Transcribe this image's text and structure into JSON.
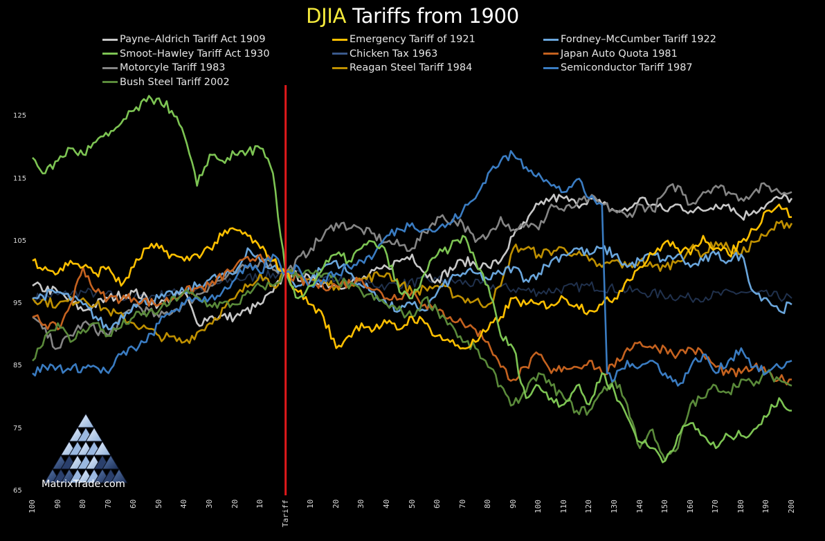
{
  "title": {
    "highlight": "DJIA",
    "rest": " Tariffs from 1900"
  },
  "logo": {
    "text": "MatrixTrade.com"
  },
  "chart_data": {
    "type": "line",
    "title": "DJIA Tariffs from 1900",
    "xlabel": "",
    "ylabel": "",
    "xlim": [
      -100,
      200
    ],
    "ylim": [
      65,
      130
    ],
    "yticks": [
      65,
      75,
      85,
      95,
      105,
      115,
      125
    ],
    "xticks": [
      {
        "x": -100,
        "label": "100"
      },
      {
        "x": -90,
        "label": "90"
      },
      {
        "x": -80,
        "label": "80"
      },
      {
        "x": -70,
        "label": "70"
      },
      {
        "x": -60,
        "label": "60"
      },
      {
        "x": -50,
        "label": "50"
      },
      {
        "x": -40,
        "label": "40"
      },
      {
        "x": -30,
        "label": "30"
      },
      {
        "x": -20,
        "label": "20"
      },
      {
        "x": -10,
        "label": "10"
      },
      {
        "x": 0,
        "label": "Tariff"
      },
      {
        "x": 10,
        "label": "10"
      },
      {
        "x": 20,
        "label": "20"
      },
      {
        "x": 30,
        "label": "30"
      },
      {
        "x": 40,
        "label": "40"
      },
      {
        "x": 50,
        "label": "50"
      },
      {
        "x": 60,
        "label": "60"
      },
      {
        "x": 70,
        "label": "70"
      },
      {
        "x": 80,
        "label": "80"
      },
      {
        "x": 90,
        "label": "90"
      },
      {
        "x": 100,
        "label": "100"
      },
      {
        "x": 110,
        "label": "110"
      },
      {
        "x": 120,
        "label": "120"
      },
      {
        "x": 130,
        "label": "130"
      },
      {
        "x": 140,
        "label": "140"
      },
      {
        "x": 150,
        "label": "150"
      },
      {
        "x": 160,
        "label": "160"
      },
      {
        "x": 170,
        "label": "170"
      },
      {
        "x": 180,
        "label": "180"
      },
      {
        "x": 190,
        "label": "190"
      },
      {
        "x": 200,
        "label": "200"
      }
    ],
    "grid": false,
    "legend_position": "top",
    "annotations": [
      {
        "type": "vertical-line",
        "x": 0,
        "color": "#e0191b",
        "label": "Tariff"
      }
    ],
    "series": [
      {
        "name": "Payne–Aldrich Tariff Act 1909",
        "color": "#c8c8c8",
        "x": [
          -100,
          -90,
          -80,
          -70,
          -60,
          -50,
          -40,
          -35,
          -30,
          -20,
          -10,
          -5,
          0,
          10,
          20,
          30,
          40,
          50,
          55,
          60,
          70,
          80,
          85,
          90,
          95,
          100,
          105,
          110,
          115,
          120,
          125,
          130,
          135,
          140,
          145,
          150,
          155,
          160,
          165,
          170,
          175,
          180,
          185,
          190,
          195,
          200
        ],
        "y": [
          98,
          97,
          94,
          96,
          97,
          95,
          97,
          92,
          93,
          93,
          95,
          97,
          100,
          99,
          98,
          99,
          101,
          103,
          100,
          99,
          102,
          101,
          102,
          106,
          108,
          111,
          112,
          112,
          111,
          112,
          111,
          110,
          110,
          112,
          111,
          110,
          111,
          110,
          110,
          111,
          111,
          109,
          110,
          111,
          112,
          112
        ]
      },
      {
        "name": "Emergency Tariff of 1921",
        "color": "#ffc000",
        "x": [
          -100,
          -95,
          -90,
          -85,
          -80,
          -75,
          -70,
          -65,
          -60,
          -55,
          -50,
          -45,
          -40,
          -35,
          -30,
          -25,
          -20,
          -15,
          -10,
          -5,
          0,
          5,
          10,
          15,
          20,
          25,
          30,
          35,
          40,
          45,
          50,
          55,
          60,
          65,
          70,
          75,
          80,
          85,
          90,
          95,
          100,
          105,
          110,
          115,
          120,
          125,
          130,
          135,
          140,
          145,
          150,
          155,
          160,
          165,
          170,
          175,
          180,
          185,
          190,
          195,
          200
        ],
        "y": [
          102,
          101,
          100,
          102,
          101,
          100,
          101,
          98,
          101,
          104,
          104,
          103,
          102,
          103,
          104,
          106,
          107,
          106,
          104,
          102,
          100,
          97,
          95,
          93,
          88,
          90,
          92,
          91,
          92,
          91,
          93,
          92,
          90,
          89,
          88,
          89,
          91,
          93,
          96,
          95,
          95,
          95,
          96,
          95,
          94,
          95,
          96,
          99,
          101,
          103,
          105,
          104,
          103,
          106,
          104,
          103,
          105,
          107,
          110,
          111,
          109
        ]
      },
      {
        "name": "Fordney–McCumber Tariff 1922",
        "color": "#6aa6dc",
        "x": [
          -100,
          -90,
          -80,
          -70,
          -60,
          -50,
          -40,
          -30,
          -20,
          -15,
          -10,
          -5,
          0,
          5,
          10,
          15,
          20,
          25,
          30,
          35,
          40,
          45,
          50,
          55,
          60,
          65,
          70,
          75,
          80,
          85,
          90,
          95,
          100,
          105,
          110,
          115,
          120,
          125,
          130,
          135,
          140,
          145,
          150,
          155,
          160,
          165,
          170,
          175,
          180,
          185,
          190,
          195,
          200
        ],
        "y": [
          96,
          97,
          95,
          91,
          95,
          96,
          97,
          99,
          100,
          104,
          102,
          101,
          100,
          98,
          99,
          101,
          102,
          100,
          98,
          97,
          95,
          94,
          95,
          94,
          97,
          99,
          100,
          100,
          99,
          100,
          101,
          99,
          100,
          102,
          103,
          104,
          103,
          104,
          103,
          101,
          102,
          103,
          102,
          103,
          101,
          102,
          103,
          102,
          103,
          97,
          96,
          94,
          95
        ]
      },
      {
        "name": "Smoot–Hawley Tariff Act 1930",
        "color": "#7dc453",
        "x": [
          -100,
          -95,
          -90,
          -85,
          -80,
          -75,
          -70,
          -65,
          -60,
          -55,
          -50,
          -45,
          -40,
          -35,
          -30,
          -25,
          -20,
          -15,
          -10,
          -5,
          -2,
          0,
          5,
          10,
          15,
          20,
          25,
          30,
          35,
          40,
          45,
          50,
          55,
          60,
          65,
          70,
          75,
          80,
          85,
          90,
          95,
          100,
          105,
          110,
          115,
          120,
          125,
          130,
          135,
          140,
          145,
          150,
          155,
          160,
          165,
          170,
          175,
          180,
          185,
          190,
          195,
          200
        ],
        "y": [
          118.5,
          116,
          118,
          120,
          119,
          121,
          122,
          124,
          126,
          127.5,
          128,
          126,
          122,
          114,
          119,
          118,
          119,
          119.5,
          120,
          116,
          106,
          100,
          96,
          98,
          101,
          103,
          102,
          104,
          105,
          103,
          97,
          96,
          100,
          103,
          104,
          106,
          102,
          98,
          90,
          88,
          80,
          82,
          80,
          79,
          82,
          79,
          84,
          81,
          77,
          73,
          72,
          70,
          74,
          76,
          74,
          72,
          74,
          74,
          75,
          77,
          80,
          78
        ]
      },
      {
        "name": "Chicken Tax 1963",
        "color": "#3b5a8c",
        "x": [
          -100,
          -80,
          -60,
          -40,
          -20,
          0,
          20,
          40,
          60,
          80,
          100,
          120,
          140,
          160,
          180,
          200
        ],
        "y": [
          96,
          97,
          96,
          97,
          99,
          100,
          99,
          98,
          99,
          98,
          97,
          98,
          97,
          96,
          97,
          96
        ]
      },
      {
        "name": "Japan Auto Quota 1981",
        "color": "#c5621f",
        "x": [
          -100,
          -90,
          -85,
          -80,
          -75,
          -70,
          -60,
          -50,
          -40,
          -30,
          -20,
          -10,
          0,
          10,
          20,
          30,
          40,
          50,
          55,
          60,
          65,
          70,
          75,
          80,
          85,
          90,
          95,
          100,
          105,
          110,
          115,
          120,
          125,
          130,
          135,
          140,
          145,
          150,
          155,
          160,
          165,
          170,
          175,
          180,
          185,
          190,
          195,
          200
        ],
        "y": [
          93,
          91,
          95,
          101,
          97,
          96,
          96,
          95,
          97,
          98,
          101,
          103,
          100,
          98,
          98,
          99,
          96,
          97,
          95,
          94,
          93,
          92,
          91,
          89,
          85,
          83,
          85,
          87,
          84,
          85,
          85,
          86,
          84,
          85,
          88,
          89,
          88,
          88,
          87,
          88,
          87,
          85,
          84,
          84,
          85,
          84,
          83,
          83
        ]
      },
      {
        "name": "Motorcyle Tariff 1983",
        "color": "#858585",
        "x": [
          -100,
          -90,
          -80,
          -70,
          -60,
          -50,
          -40,
          -30,
          -20,
          -10,
          0,
          10,
          20,
          30,
          40,
          50,
          60,
          70,
          75,
          80,
          85,
          90,
          95,
          100,
          105,
          110,
          115,
          120,
          125,
          130,
          135,
          140,
          145,
          150,
          155,
          160,
          165,
          170,
          175,
          180,
          185,
          190,
          195,
          200
        ],
        "y": [
          93,
          88,
          92,
          90,
          95,
          93,
          95,
          98,
          100,
          102,
          100,
          104,
          108,
          107,
          105,
          104,
          109,
          108,
          105,
          106,
          109,
          107,
          108,
          107,
          111,
          110,
          111,
          112,
          111,
          110,
          109,
          111,
          110,
          113,
          114,
          111,
          113,
          114,
          113,
          112,
          113,
          114,
          113,
          113
        ]
      },
      {
        "name": "Reagan Steel Tariff 1984",
        "color": "#bf9000",
        "x": [
          -100,
          -90,
          -80,
          -70,
          -60,
          -50,
          -40,
          -30,
          -20,
          -10,
          -5,
          0,
          10,
          20,
          30,
          40,
          50,
          60,
          70,
          80,
          85,
          90,
          95,
          100,
          110,
          115,
          120,
          125,
          130,
          135,
          140,
          145,
          150,
          155,
          160,
          165,
          170,
          175,
          180,
          185,
          190,
          195,
          200
        ],
        "y": [
          96,
          95,
          96,
          94,
          92,
          90,
          89,
          92,
          96,
          100,
          98,
          100,
          99,
          98,
          99,
          100,
          97,
          98,
          96,
          95,
          98,
          104,
          104,
          103,
          104,
          103,
          102,
          101,
          102,
          101,
          102,
          101,
          101,
          102,
          104,
          103,
          105,
          104,
          103,
          105,
          106,
          108,
          108
        ]
      },
      {
        "name": "Semiconductor Tariff 1987",
        "color": "#3a7cc2",
        "x": [
          -100,
          -95,
          -90,
          -85,
          -80,
          -75,
          -70,
          -65,
          -60,
          -55,
          -50,
          -45,
          -40,
          -35,
          -30,
          -25,
          -20,
          -15,
          -10,
          -5,
          0,
          5,
          10,
          15,
          20,
          25,
          30,
          35,
          40,
          45,
          50,
          55,
          60,
          65,
          70,
          75,
          80,
          85,
          90,
          95,
          100,
          105,
          110,
          115,
          120,
          125,
          127,
          130,
          135,
          140,
          145,
          150,
          155,
          160,
          165,
          170,
          175,
          180,
          185,
          190,
          195,
          200
        ],
        "y": [
          84,
          85,
          85,
          84.5,
          85,
          85,
          84,
          87,
          88,
          89,
          92,
          94,
          95,
          96,
          96,
          97,
          99,
          101,
          100,
          103,
          100,
          101,
          98,
          99,
          100,
          101,
          102,
          103,
          106,
          107,
          108,
          107,
          107,
          108,
          110,
          112,
          116,
          118,
          119,
          117,
          116,
          114,
          113,
          115,
          112,
          111,
          84,
          83,
          86,
          85,
          86,
          84,
          82,
          85,
          87,
          84,
          86,
          88,
          85,
          84,
          85,
          86
        ]
      },
      {
        "name": "Bush Steel Tariff 2002",
        "color": "#5a8a3a",
        "x": [
          -100,
          -95,
          -90,
          -85,
          -80,
          -75,
          -70,
          -60,
          -50,
          -40,
          -30,
          -20,
          -10,
          -5,
          0,
          10,
          20,
          30,
          40,
          50,
          55,
          60,
          65,
          70,
          75,
          80,
          85,
          90,
          95,
          100,
          105,
          110,
          115,
          120,
          125,
          130,
          135,
          140,
          145,
          150,
          155,
          160,
          165,
          170,
          175,
          180,
          185,
          190,
          195,
          200
        ],
        "y": [
          86,
          90,
          92,
          89,
          91,
          92,
          90,
          93,
          94,
          97,
          95,
          95,
          98,
          98,
          100,
          100,
          99,
          97,
          95,
          93,
          96,
          94,
          92,
          89,
          88,
          85,
          82,
          79,
          81,
          84,
          82,
          80,
          78,
          78,
          81,
          83,
          79,
          72,
          75,
          70,
          72,
          79,
          80,
          82,
          81,
          83,
          82,
          84,
          83,
          82
        ]
      }
    ]
  },
  "legend": [
    {
      "label": "Payne–Aldrich Tariff Act 1909",
      "color": "#c8c8c8"
    },
    {
      "label": "Emergency Tariff of 1921",
      "color": "#ffc000"
    },
    {
      "label": "Fordney–McCumber Tariff 1922",
      "color": "#6aa6dc"
    },
    {
      "label": "Smoot–Hawley Tariff Act 1930",
      "color": "#7dc453"
    },
    {
      "label": "Chicken Tax 1963",
      "color": "#3b5a8c"
    },
    {
      "label": "Japan Auto Quota 1981",
      "color": "#c5621f"
    },
    {
      "label": "Motorcyle Tariff 1983",
      "color": "#858585"
    },
    {
      "label": "Reagan Steel Tariff 1984",
      "color": "#bf9000"
    },
    {
      "label": "Semiconductor Tariff 1987",
      "color": "#3a7cc2"
    },
    {
      "label": "Bush Steel Tariff 2002",
      "color": "#5a8a3a"
    }
  ]
}
